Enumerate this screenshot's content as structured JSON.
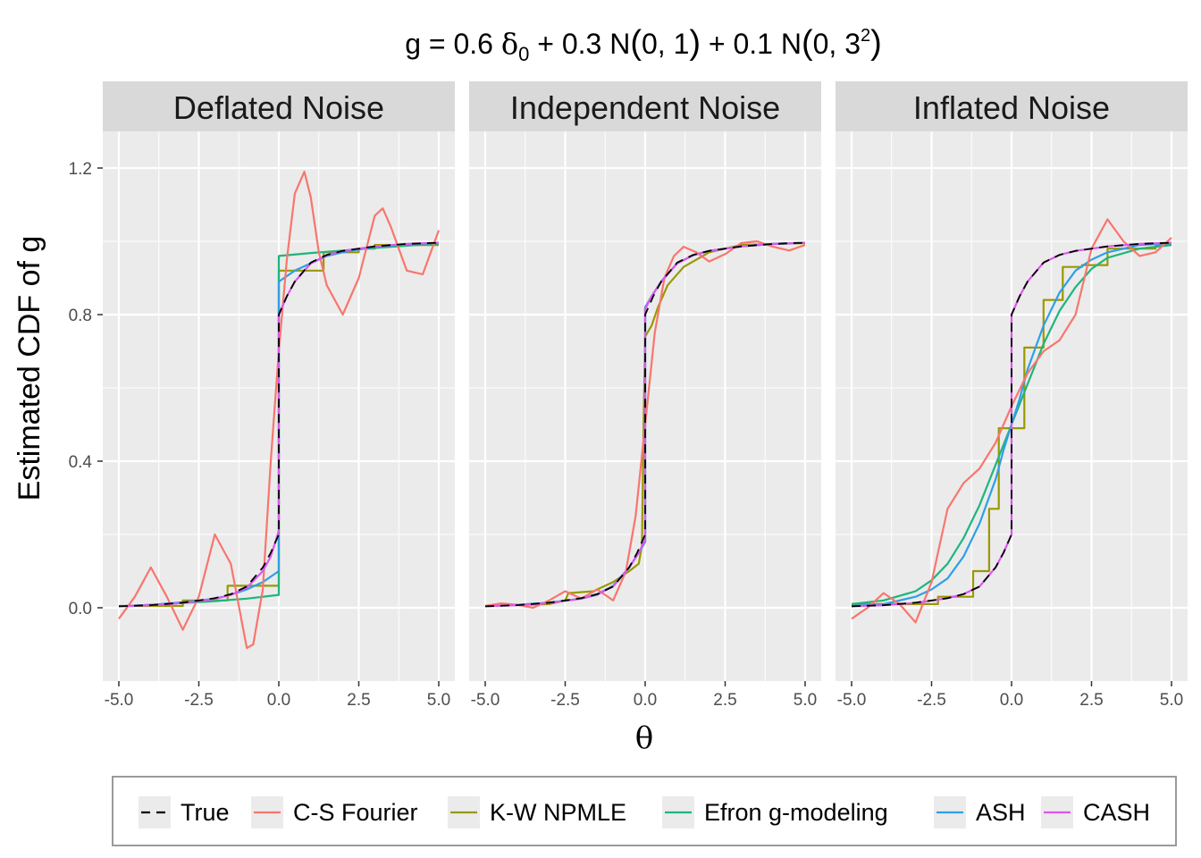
{
  "title": {
    "prefix": "g = 0.6 ",
    "delta": "δ",
    "delta_sub": "0",
    "middle": " + 0.3 N",
    "paren1_open": "(",
    "args1": "0, 1",
    "paren1_close": ")",
    "middle2": " + 0.1 N",
    "paren2_open": "(",
    "args2": "0, 3",
    "args2_sup": "2",
    "paren2_close": ")"
  },
  "ylabel": "Estimated CDF of g",
  "xlabel": "θ",
  "chart_data": {
    "type": "line",
    "x_range": [
      -5,
      5
    ],
    "y_range": [
      -0.2,
      1.3
    ],
    "x_ticks": [
      -5.0,
      -2.5,
      0.0,
      2.5,
      5.0
    ],
    "x_tick_labels": [
      "-5.0",
      "-2.5",
      "0.0",
      "2.5",
      "5.0"
    ],
    "y_ticks": [
      0.0,
      0.4,
      0.8,
      1.2
    ],
    "y_tick_labels": [
      "0.0",
      "0.4",
      "0.8",
      "1.2"
    ],
    "grid": true,
    "legend_position": "bottom",
    "legend": [
      {
        "name": "True",
        "color": "#000000",
        "dashed": true
      },
      {
        "name": "C-S Fourier",
        "color": "#F8766D"
      },
      {
        "name": "K-W NPMLE",
        "color": "#999900"
      },
      {
        "name": "Efron g-modeling",
        "color": "#1EB57D"
      },
      {
        "name": "ASH",
        "color": "#2E9FE8"
      },
      {
        "name": "CASH",
        "color": "#DD55F0"
      }
    ],
    "panels": [
      {
        "name": "Deflated Noise",
        "series": {
          "True": {
            "x": [
              -5,
              -4,
              -3,
              -2,
              -1.5,
              -1,
              -0.5,
              -0.25,
              -0.1,
              0,
              0,
              0.1,
              0.25,
              0.5,
              1,
              1.5,
              2,
              3,
              4,
              5
            ],
            "y": [
              0.004,
              0.007,
              0.014,
              0.026,
              0.037,
              0.058,
              0.11,
              0.15,
              0.18,
              0.2,
              0.8,
              0.82,
              0.85,
              0.89,
              0.942,
              0.963,
              0.974,
              0.986,
              0.993,
              0.996
            ]
          },
          "C-S Fourier": {
            "x": [
              -5,
              -4.5,
              -4,
              -3.5,
              -3,
              -2.5,
              -2,
              -1.5,
              -1,
              -0.8,
              -0.5,
              -0.25,
              0,
              0.25,
              0.5,
              0.8,
              1,
              1.25,
              1.5,
              2,
              2.5,
              3,
              3.25,
              3.5,
              4,
              4.5,
              5
            ],
            "y": [
              -0.03,
              0.03,
              0.11,
              0.03,
              -0.06,
              0.03,
              0.2,
              0.12,
              -0.11,
              -0.1,
              0.05,
              0.4,
              0.7,
              0.95,
              1.13,
              1.19,
              1.12,
              0.97,
              0.88,
              0.8,
              0.9,
              1.07,
              1.09,
              1.04,
              0.92,
              0.91,
              1.03
            ]
          },
          "K-W NPMLE": {
            "x": [
              -5,
              -3,
              -3,
              -1.6,
              -1.6,
              0,
              0,
              1.4,
              1.4,
              2.5,
              2.5,
              3,
              3,
              5
            ],
            "y": [
              0.005,
              0.005,
              0.02,
              0.02,
              0.06,
              0.06,
              0.92,
              0.92,
              0.97,
              0.97,
              0.98,
              0.98,
              0.99,
              0.99
            ]
          },
          "Efron g-modeling": {
            "x": [
              -5,
              -4,
              -3,
              -2,
              -1,
              0,
              0,
              1,
              2,
              3,
              4,
              5
            ],
            "y": [
              0.004,
              0.008,
              0.013,
              0.018,
              0.025,
              0.035,
              0.96,
              0.968,
              0.975,
              0.982,
              0.988,
              0.994
            ]
          },
          "ASH": {
            "x": [
              -5,
              -4,
              -3,
              -2,
              -1.5,
              -1,
              -0.5,
              0,
              0,
              0.5,
              1,
              1.5,
              2,
              3,
              4,
              5
            ],
            "y": [
              0.004,
              0.008,
              0.015,
              0.025,
              0.035,
              0.05,
              0.07,
              0.1,
              0.89,
              0.92,
              0.94,
              0.96,
              0.97,
              0.985,
              0.992,
              0.996
            ]
          },
          "CASH": {
            "x": [
              -5,
              -4,
              -3,
              -2,
              -1.5,
              -1,
              -0.5,
              -0.25,
              0,
              0,
              0.25,
              0.5,
              1,
              1.5,
              2,
              3,
              4,
              5
            ],
            "y": [
              0.004,
              0.007,
              0.013,
              0.024,
              0.035,
              0.055,
              0.1,
              0.14,
              0.21,
              0.8,
              0.85,
              0.89,
              0.94,
              0.962,
              0.974,
              0.986,
              0.993,
              0.996
            ]
          }
        }
      },
      {
        "name": "Independent Noise",
        "series": {
          "True": {
            "x": [
              -5,
              -4,
              -3,
              -2,
              -1.5,
              -1,
              -0.5,
              -0.25,
              -0.1,
              0,
              0,
              0.1,
              0.25,
              0.5,
              1,
              1.5,
              2,
              3,
              4,
              5
            ],
            "y": [
              0.004,
              0.007,
              0.014,
              0.026,
              0.037,
              0.058,
              0.11,
              0.15,
              0.18,
              0.2,
              0.8,
              0.82,
              0.85,
              0.89,
              0.942,
              0.963,
              0.974,
              0.986,
              0.993,
              0.996
            ]
          },
          "C-S Fourier": {
            "x": [
              -5,
              -4.5,
              -4,
              -3.5,
              -3,
              -2.5,
              -2,
              -1.5,
              -1,
              -0.6,
              -0.3,
              0,
              0.3,
              0.6,
              0.9,
              1.2,
              1.6,
              2,
              2.5,
              3,
              3.5,
              4,
              4.5,
              5
            ],
            "y": [
              0.005,
              0.012,
              0.008,
              0.0,
              0.02,
              0.045,
              0.025,
              0.05,
              0.02,
              0.1,
              0.25,
              0.5,
              0.75,
              0.9,
              0.96,
              0.985,
              0.97,
              0.945,
              0.965,
              0.995,
              1.0,
              0.985,
              0.975,
              0.99
            ]
          },
          "K-W NPMLE": {
            "x": [
              -5,
              -3,
              -2.5,
              -2.4,
              -1.6,
              -1.5,
              -1,
              -0.5,
              -0.2,
              -0.1,
              -0.05,
              0,
              0.2,
              0.4,
              0.7,
              1.2,
              2,
              3,
              5
            ],
            "y": [
              0.005,
              0.01,
              0.02,
              0.04,
              0.045,
              0.05,
              0.07,
              0.1,
              0.12,
              0.17,
              0.5,
              0.74,
              0.77,
              0.82,
              0.88,
              0.93,
              0.97,
              0.99,
              0.995
            ]
          },
          "Efron g-modeling": {
            "x": [
              -5,
              -4,
              -3,
              -2,
              -1.5,
              -1,
              -0.5,
              -0.2,
              0,
              0,
              0.2,
              0.5,
              1,
              1.5,
              2,
              3,
              4,
              5
            ],
            "y": [
              0.004,
              0.008,
              0.014,
              0.025,
              0.035,
              0.06,
              0.11,
              0.15,
              0.18,
              0.82,
              0.85,
              0.89,
              0.94,
              0.962,
              0.974,
              0.986,
              0.993,
              0.996
            ]
          },
          "ASH": {
            "x": [
              -5,
              -4,
              -3,
              -2,
              -1.5,
              -1,
              -0.5,
              -0.2,
              0,
              0,
              0.2,
              0.5,
              1,
              1.5,
              2,
              3,
              4,
              5
            ],
            "y": [
              0.004,
              0.008,
              0.014,
              0.025,
              0.037,
              0.06,
              0.11,
              0.15,
              0.18,
              0.82,
              0.85,
              0.89,
              0.94,
              0.962,
              0.974,
              0.986,
              0.993,
              0.996
            ]
          },
          "CASH": {
            "x": [
              -5,
              -4,
              -3,
              -2,
              -1.5,
              -1,
              -0.5,
              -0.2,
              0,
              0,
              0.2,
              0.5,
              1,
              1.5,
              2,
              3,
              4,
              5
            ],
            "y": [
              0.004,
              0.007,
              0.013,
              0.025,
              0.036,
              0.058,
              0.11,
              0.15,
              0.185,
              0.815,
              0.85,
              0.89,
              0.94,
              0.962,
              0.974,
              0.986,
              0.993,
              0.996
            ]
          }
        }
      },
      {
        "name": "Inflated Noise",
        "series": {
          "True": {
            "x": [
              -5,
              -4,
              -3,
              -2,
              -1.5,
              -1,
              -0.5,
              -0.25,
              -0.1,
              0,
              0,
              0.1,
              0.25,
              0.5,
              1,
              1.5,
              2,
              3,
              4,
              5
            ],
            "y": [
              0.004,
              0.007,
              0.014,
              0.026,
              0.037,
              0.058,
              0.11,
              0.15,
              0.18,
              0.2,
              0.8,
              0.82,
              0.85,
              0.89,
              0.942,
              0.963,
              0.974,
              0.986,
              0.993,
              0.996
            ]
          },
          "C-S Fourier": {
            "x": [
              -5,
              -4.5,
              -4,
              -3.5,
              -3,
              -2.5,
              -2,
              -1.5,
              -1,
              -0.5,
              0,
              0.5,
              1,
              1.5,
              2,
              2.5,
              3,
              3.5,
              4,
              4.5,
              5
            ],
            "y": [
              -0.03,
              0.0,
              0.04,
              0.01,
              -0.04,
              0.07,
              0.27,
              0.34,
              0.38,
              0.45,
              0.55,
              0.64,
              0.7,
              0.73,
              0.8,
              0.98,
              1.06,
              1.0,
              0.96,
              0.97,
              1.01
            ]
          },
          "K-W NPMLE": {
            "x": [
              -5,
              -2.3,
              -2.3,
              -1.2,
              -1.2,
              -0.7,
              -0.7,
              -0.4,
              -0.4,
              0,
              0,
              0.4,
              0.4,
              1.0,
              1.0,
              1.6,
              1.6,
              2.2,
              2.2,
              3.0,
              3.0,
              4.5,
              4.5,
              5
            ],
            "y": [
              0.01,
              0.01,
              0.03,
              0.03,
              0.1,
              0.1,
              0.27,
              0.27,
              0.49,
              0.49,
              0.49,
              0.49,
              0.71,
              0.71,
              0.84,
              0.84,
              0.93,
              0.93,
              0.935,
              0.935,
              0.98,
              0.98,
              0.99,
              0.99
            ]
          },
          "Efron g-modeling": {
            "x": [
              -5,
              -4,
              -3,
              -2.5,
              -2,
              -1.5,
              -1,
              -0.5,
              0,
              0.5,
              1,
              1.5,
              2,
              2.5,
              3,
              4,
              5
            ],
            "y": [
              0.01,
              0.02,
              0.045,
              0.075,
              0.12,
              0.19,
              0.28,
              0.39,
              0.5,
              0.61,
              0.72,
              0.81,
              0.875,
              0.925,
              0.955,
              0.98,
              0.99
            ]
          },
          "ASH": {
            "x": [
              -5,
              -4,
              -3,
              -2.5,
              -2,
              -1.5,
              -1,
              -0.5,
              -0.25,
              0,
              0.25,
              0.5,
              1,
              1.5,
              2,
              2.5,
              3,
              4,
              5
            ],
            "y": [
              0.005,
              0.01,
              0.03,
              0.05,
              0.08,
              0.14,
              0.23,
              0.35,
              0.43,
              0.5,
              0.57,
              0.65,
              0.77,
              0.86,
              0.92,
              0.95,
              0.97,
              0.99,
              0.995
            ]
          },
          "CASH": {
            "x": [
              -5,
              -4,
              -3,
              -2,
              -1.5,
              -1,
              -0.5,
              -0.25,
              0,
              0,
              0.25,
              0.5,
              1,
              1.5,
              2,
              3,
              4,
              5
            ],
            "y": [
              0.004,
              0.007,
              0.013,
              0.026,
              0.037,
              0.058,
              0.11,
              0.15,
              0.2,
              0.8,
              0.85,
              0.89,
              0.942,
              0.963,
              0.974,
              0.986,
              0.993,
              0.996
            ]
          }
        }
      }
    ]
  }
}
